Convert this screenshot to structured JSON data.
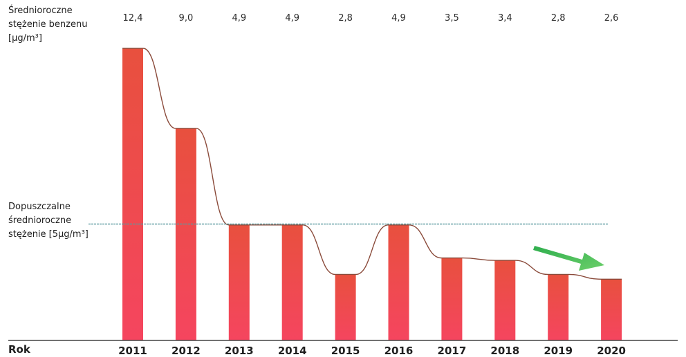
{
  "chart_data": {
    "type": "bar",
    "categories": [
      "2011",
      "2012",
      "2013",
      "2014",
      "2015",
      "2016",
      "2017",
      "2018",
      "2019",
      "2020"
    ],
    "values": [
      12.4,
      9.0,
      4.9,
      4.9,
      2.8,
      4.9,
      3.5,
      3.4,
      2.8,
      2.6
    ],
    "value_labels": [
      "12,4",
      "9,0",
      "4,9",
      "4,9",
      "2,8",
      "4,9",
      "3,5",
      "3,4",
      "2,8",
      "2,6"
    ],
    "ylabel": "Średnioroczne\nstężenie benzenu\n[µg/m³]",
    "xlabel": "Rok",
    "ylim": [
      0,
      12.4
    ],
    "reference_line": {
      "value": 5,
      "label": "Dopuszczalne\nśrednioroczne\nstężenie [5µg/m³]"
    },
    "trend_arrow": "decreasing",
    "grid": false,
    "colors": {
      "bar": "#f04a5a",
      "bar_top": "#e8503e",
      "curve": "#8a4a3a",
      "limit_line": "#5a9aa0",
      "arrow": "#3dbb5a",
      "axis": "#444444"
    }
  }
}
